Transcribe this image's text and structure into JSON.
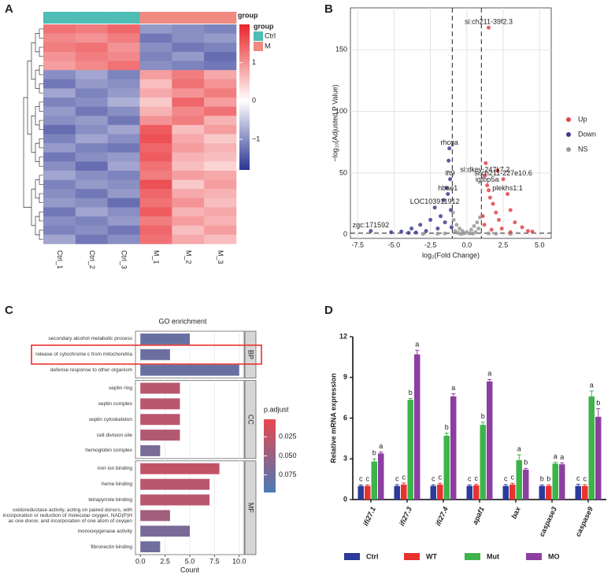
{
  "chart_data": [
    {
      "type": "heatmap",
      "panel_label": "A",
      "group_title": "group",
      "columns": [
        "Ctrl_1",
        "Ctrl_2",
        "Ctrl_3",
        "M_1",
        "M_2",
        "M_3"
      ],
      "groups": [
        "Ctrl",
        "Ctrl",
        "Ctrl",
        "M",
        "M",
        "M"
      ],
      "group_legend": [
        "Ctrl",
        "M"
      ],
      "group_colors": {
        "Ctrl": "#4dbdb5",
        "M": "#f08a80"
      },
      "colors": [
        "#2b3593",
        "#ffffff",
        "#e8262a"
      ],
      "clim": [
        -1.8,
        2.0
      ],
      "cticks": [
        1,
        0,
        {
          "value": -1,
          "label": "−1"
        }
      ],
      "values": [
        [
          1.3,
          1.2,
          1.4,
          -0.9,
          -1.0,
          -1.1
        ],
        [
          1.1,
          1.0,
          1.2,
          -1.2,
          -1.0,
          -0.9
        ],
        [
          1.2,
          1.3,
          1.0,
          -1.0,
          -1.2,
          -1.1
        ],
        [
          1.0,
          1.2,
          1.1,
          -1.1,
          -0.9,
          -1.3
        ],
        [
          0.9,
          1.1,
          1.3,
          -1.0,
          -1.1,
          -1.2
        ],
        [
          -1.0,
          -0.8,
          -1.1,
          0.9,
          1.2,
          0.8
        ],
        [
          -1.2,
          -0.9,
          -1.0,
          0.6,
          1.3,
          1.0
        ],
        [
          -0.8,
          -1.1,
          -0.9,
          0.8,
          1.0,
          1.2
        ],
        [
          -1.1,
          -1.0,
          -0.7,
          0.5,
          1.4,
          0.9
        ],
        [
          -0.9,
          -1.2,
          -1.0,
          0.7,
          1.1,
          1.3
        ],
        [
          -1.0,
          -0.9,
          -1.2,
          1.0,
          1.2,
          0.7
        ],
        [
          -1.3,
          -1.0,
          -0.8,
          1.5,
          0.6,
          0.9
        ],
        [
          -1.1,
          -0.8,
          -1.0,
          1.6,
          0.8,
          0.5
        ],
        [
          -0.9,
          -1.1,
          -1.2,
          1.4,
          0.9,
          0.7
        ],
        [
          -1.2,
          -1.0,
          -0.9,
          1.5,
          0.7,
          0.6
        ],
        [
          -1.0,
          -1.3,
          -0.8,
          1.3,
          0.6,
          0.4
        ],
        [
          -0.8,
          -1.0,
          -1.1,
          1.2,
          0.9,
          0.8
        ],
        [
          -1.1,
          -0.9,
          -1.0,
          1.6,
          0.5,
          0.9
        ],
        [
          -1.0,
          -1.2,
          -0.9,
          1.4,
          0.8,
          0.7
        ],
        [
          -0.9,
          -1.0,
          -1.3,
          1.3,
          1.0,
          0.6
        ],
        [
          -1.2,
          -0.8,
          -1.0,
          1.5,
          0.7,
          0.8
        ],
        [
          -1.0,
          -1.1,
          -0.9,
          1.2,
          0.9,
          0.7
        ],
        [
          -1.1,
          -1.0,
          -1.2,
          1.4,
          0.6,
          0.9
        ],
        [
          -0.8,
          -1.2,
          -1.0,
          1.3,
          0.8,
          0.6
        ]
      ]
    },
    {
      "type": "scatter",
      "panel_label": "B",
      "x_label": "log₂(Fold Change)",
      "y_label": "−log₁₀(Adjusted P Value)",
      "xlim": [
        -8,
        5.8
      ],
      "ylim": [
        -3,
        184
      ],
      "xticks": [
        -7.5,
        {
          "value": -5,
          "label": "-5.0"
        },
        -2.5,
        {
          "value": 0,
          "label": "0.0"
        },
        2.5,
        {
          "value": 5,
          "label": "5.0"
        }
      ],
      "yticks": [
        0,
        50,
        100,
        150
      ],
      "grid": true,
      "vlines": [
        -1,
        1
      ],
      "hline": 1.3,
      "series": [
        {
          "name": "Up",
          "color": "#e0474c",
          "x": [
            1.5,
            1.3,
            1.25,
            1.4,
            1.6,
            1.8,
            2.0,
            2.2,
            2.5,
            2.8,
            3.0,
            3.3,
            3.8,
            4.2,
            1.1,
            1.2,
            2.4,
            1.7,
            3.0,
            4.5,
            1.5,
            2.1
          ],
          "y": [
            168,
            58,
            48,
            40,
            30,
            25,
            18,
            12,
            45,
            33,
            20,
            10,
            6,
            3,
            15,
            8,
            5,
            4,
            2,
            2.5,
            36,
            52
          ],
          "labels": [
            "si:ch211-39f2.3",
            null,
            "si:dkey-247k7.2",
            "igfbp5a",
            null,
            null,
            null,
            null,
            "si:ch211-227e10.6",
            "plekhs1:1",
            null,
            null,
            null,
            null,
            null,
            null,
            null,
            null,
            null,
            null,
            null,
            null
          ]
        },
        {
          "name": "Down",
          "color": "#3f3d8f",
          "x": [
            -6.6,
            -5.2,
            -4.5,
            -3.8,
            -3.2,
            -2.8,
            -2.5,
            -2.2,
            -2.0,
            -1.8,
            -1.6,
            -1.5,
            -1.4,
            -1.3,
            -1.25,
            -1.2,
            -1.15,
            -1.1,
            -1.05,
            -4.0,
            -3.5
          ],
          "y": [
            3,
            2,
            2.5,
            5,
            8,
            3,
            12,
            22,
            5,
            15,
            28,
            10,
            38,
            33,
            60,
            70,
            45,
            20,
            6,
            1.5,
            1.8
          ],
          "labels": [
            "zgc:171592",
            null,
            null,
            null,
            null,
            null,
            null,
            "LOC103911912",
            null,
            null,
            null,
            null,
            null,
            "hbae1",
            null,
            "rhcga",
            "lft9",
            null,
            null,
            null,
            null
          ]
        },
        {
          "name": "NS",
          "color": "#9a9a9a",
          "x": [
            -0.9,
            -0.7,
            -0.5,
            -0.3,
            0.0,
            0.3,
            0.5,
            0.7,
            0.9,
            -0.8,
            -0.2,
            0.2,
            0.6,
            -0.6,
            0.8,
            -0.95,
            -0.4,
            0.4,
            -2.0,
            -3.0,
            2.0,
            3.0,
            -1.5,
            1.5
          ],
          "y": [
            12,
            8,
            5,
            3,
            2,
            4,
            7,
            10,
            14,
            3,
            1,
            1,
            2,
            1.5,
            5,
            18,
            0.5,
            0.8,
            0.8,
            0.5,
            0.8,
            0.6,
            1,
            1
          ],
          "labels": [
            null,
            null,
            null,
            null,
            null,
            null,
            null,
            null,
            null,
            null,
            null,
            null,
            null,
            null,
            null,
            null,
            null,
            null,
            null,
            null,
            null,
            null,
            null,
            null
          ]
        }
      ]
    },
    {
      "type": "barh",
      "panel_label": "C",
      "title": "GO enrichment",
      "x_label": "Count",
      "xlim": [
        -0.5,
        10.5
      ],
      "xticks": [
        {
          "value": 0,
          "label": "0.0"
        },
        2.5,
        {
          "value": 5,
          "label": "5.0"
        },
        7.5,
        {
          "value": 10,
          "label": "10.0"
        }
      ],
      "color_title": "p.adjust",
      "color_lim": [
        0.002,
        0.098
      ],
      "colors": [
        "#e8474f",
        "#4a7ab5"
      ],
      "color_ticks": [
        0.025,
        {
          "value": 0.05,
          "label": "0.050"
        },
        0.075
      ],
      "facets": [
        {
          "name": "BP",
          "categories": [
            "secondary alcohol metabolic process",
            "release of cytochrome c from mitochondria",
            "defense response to other organism"
          ],
          "values": [
            5,
            3,
            10
          ],
          "p_adjust": [
            0.08,
            0.078,
            0.08
          ]
        },
        {
          "name": "CC",
          "categories": [
            "septin ring",
            "septin complex",
            "septin cytoskeleton",
            "cell division site",
            "hemoglobin complex"
          ],
          "values": [
            4,
            4,
            4,
            4,
            2
          ],
          "p_adjust": [
            0.03,
            0.03,
            0.03,
            0.035,
            0.07
          ]
        },
        {
          "name": "MF",
          "categories": [
            "iron ion binding",
            "heme binding",
            "tetrapyrrole binding",
            "oxidoreductase activity, acting on paired donors, with incorporation or reduction of molecular oxygen, NAD(P)H as one donor, and incorporation of one atom of oxygen",
            "monooxygenase activity",
            "fibronectin binding"
          ],
          "values": [
            8,
            7,
            7,
            3,
            5,
            2
          ],
          "p_adjust": [
            0.025,
            0.03,
            0.03,
            0.045,
            0.07,
            0.075
          ]
        }
      ]
    },
    {
      "type": "bar",
      "panel_label": "D",
      "y_label": "Relative mRNA expression",
      "categories": [
        "ifi27.1",
        "ifi27.3",
        "ifi27.4",
        "apaf1",
        "bax",
        "caspase3",
        "caspase9"
      ],
      "ylim": [
        0,
        12
      ],
      "yticks": [
        0,
        3,
        6,
        9,
        12
      ],
      "series": [
        {
          "name": "Ctrl",
          "color": "#2b3a9b",
          "values": [
            1.0,
            1.0,
            1.0,
            1.0,
            1.0,
            1.0,
            1.0
          ],
          "errors": [
            0.08,
            0.1,
            0.08,
            0.08,
            0.1,
            0.08,
            0.12
          ],
          "letters": [
            "c",
            "c",
            "c",
            "c",
            "c",
            "b",
            "c"
          ]
        },
        {
          "name": "WT",
          "color": "#e8322e",
          "values": [
            1.0,
            1.1,
            1.1,
            1.05,
            1.1,
            1.0,
            1.0
          ],
          "errors": [
            0.08,
            0.12,
            0.1,
            0.08,
            0.1,
            0.08,
            0.1
          ],
          "letters": [
            "c",
            "c",
            "c",
            "c",
            "c",
            "b",
            "c"
          ]
        },
        {
          "name": "Mut",
          "color": "#3cb449",
          "values": [
            2.8,
            7.35,
            4.7,
            5.5,
            2.9,
            2.65,
            7.6
          ],
          "errors": [
            0.2,
            0.1,
            0.2,
            0.2,
            0.4,
            0.1,
            0.4
          ],
          "letters": [
            "b",
            "b",
            "b",
            "b",
            "a",
            "a",
            "a"
          ]
        },
        {
          "name": "MO",
          "color": "#8c3fa0",
          "values": [
            3.4,
            10.7,
            7.6,
            8.7,
            2.2,
            2.6,
            6.1
          ],
          "errors": [
            0.1,
            0.3,
            0.2,
            0.15,
            0.1,
            0.1,
            0.6
          ],
          "letters": [
            "a",
            "a",
            "a",
            "a",
            "b",
            "a",
            "b"
          ]
        }
      ]
    }
  ]
}
